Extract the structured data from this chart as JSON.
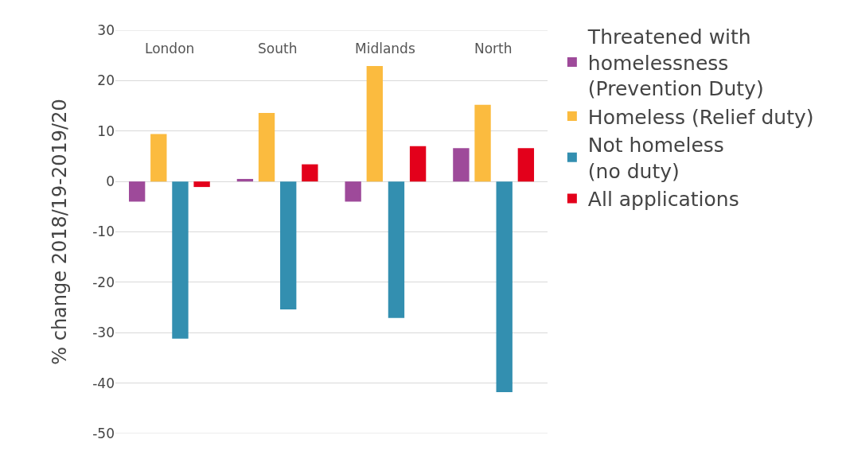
{
  "chart_data": {
    "type": "bar",
    "ylabel": "% change 2018/19-2019/20",
    "categories": [
      "London",
      "South",
      "Midlands",
      "North"
    ],
    "series": [
      {
        "name": "Threatened with\nhomelessness\n(Prevention Duty)",
        "color": "#9e4a9a",
        "values": [
          -4.0,
          0.5,
          -4.0,
          6.6
        ]
      },
      {
        "name": "Homeless (Relief duty)",
        "color": "#fbbb3f",
        "values": [
          9.4,
          13.6,
          22.9,
          15.2
        ]
      },
      {
        "name": "Not homeless\n(no duty)",
        "color": "#338fb0",
        "values": [
          -31.2,
          -25.4,
          -27.1,
          -41.8
        ]
      },
      {
        "name": "All applications",
        "color": "#e3001b",
        "values": [
          -1.1,
          3.4,
          7.0,
          6.6
        ]
      }
    ],
    "ylim": [
      -50,
      30
    ],
    "yticks": [
      -50,
      -40,
      -30,
      -20,
      -10,
      0,
      10,
      20,
      30
    ],
    "grid": "y",
    "legend": "right"
  }
}
